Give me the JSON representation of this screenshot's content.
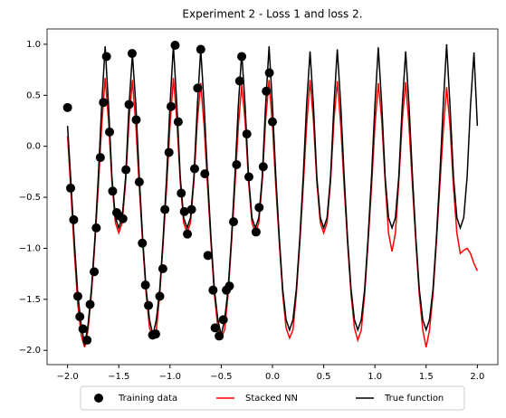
{
  "chart_data": {
    "type": "line",
    "title": "Experiment 2 - Loss 1 and loss 2.",
    "xlim": [
      -2.2,
      2.2
    ],
    "ylim": [
      -2.14,
      1.15
    ],
    "xticks": [
      {
        "value": -2,
        "label": "−2.0"
      },
      {
        "value": -1.5,
        "label": "−1.5"
      },
      {
        "value": -1,
        "label": "−1.0"
      },
      {
        "value": -0.5,
        "label": "−0.5"
      },
      {
        "value": 0,
        "label": "0.0"
      },
      {
        "value": 0.5,
        "label": "0.5"
      },
      {
        "value": 1,
        "label": "1.0"
      },
      {
        "value": 1.5,
        "label": "1.5"
      },
      {
        "value": 2,
        "label": "2.0"
      }
    ],
    "yticks": [
      {
        "value": 1,
        "label": "1.0"
      },
      {
        "value": 0.5,
        "label": "0.5"
      },
      {
        "value": 0,
        "label": "0.0"
      },
      {
        "value": -0.5,
        "label": "−0.5"
      },
      {
        "value": -1,
        "label": "−1.0"
      },
      {
        "value": -1.5,
        "label": "−1.5"
      },
      {
        "value": -2,
        "label": "−2.0"
      }
    ],
    "legend": "lower center",
    "x": [
      -2,
      -1.967,
      -1.933,
      -1.9,
      -1.867,
      -1.833,
      -1.8,
      -1.767,
      -1.733,
      -1.7,
      -1.667,
      -1.633,
      -1.6,
      -1.567,
      -1.533,
      -1.5,
      -1.467,
      -1.433,
      -1.4,
      -1.367,
      -1.333,
      -1.3,
      -1.267,
      -1.233,
      -1.2,
      -1.167,
      -1.133,
      -1.1,
      -1.067,
      -1.033,
      -1,
      -0.967,
      -0.933,
      -0.9,
      -0.867,
      -0.833,
      -0.8,
      -0.767,
      -0.733,
      -0.7,
      -0.667,
      -0.633,
      -0.6,
      -0.567,
      -0.533,
      -0.5,
      -0.467,
      -0.433,
      -0.4,
      -0.367,
      -0.333,
      -0.3,
      -0.267,
      -0.233,
      -0.2,
      -0.167,
      -0.133,
      -0.1,
      -0.067,
      -0.033,
      0,
      0.033,
      0.067,
      0.1,
      0.133,
      0.167,
      0.2,
      0.233,
      0.267,
      0.3,
      0.333,
      0.367,
      0.4,
      0.433,
      0.467,
      0.5,
      0.533,
      0.567,
      0.6,
      0.633,
      0.667,
      0.7,
      0.733,
      0.767,
      0.8,
      0.833,
      0.867,
      0.9,
      0.933,
      0.967,
      1,
      1.033,
      1.067,
      1.1,
      1.133,
      1.167,
      1.2,
      1.233,
      1.267,
      1.3,
      1.333,
      1.367,
      1.4,
      1.433,
      1.467,
      1.5,
      1.533,
      1.567,
      1.6,
      1.633,
      1.667,
      1.7,
      1.733,
      1.767,
      1.8,
      1.833,
      1.867,
      1.9,
      1.933,
      1.967,
      2
    ],
    "series": [
      {
        "name": "Training data",
        "type": "scatter",
        "color": "#000000",
        "x": [
          -2.0,
          -1.97,
          -1.94,
          -1.9,
          -1.88,
          -1.85,
          -1.81,
          -1.78,
          -1.74,
          -1.72,
          -1.68,
          -1.65,
          -1.62,
          -1.59,
          -1.56,
          -1.52,
          -1.5,
          -1.46,
          -1.43,
          -1.4,
          -1.37,
          -1.33,
          -1.3,
          -1.27,
          -1.24,
          -1.21,
          -1.17,
          -1.14,
          -1.1,
          -1.07,
          -1.05,
          -1.01,
          -0.99,
          -0.95,
          -0.92,
          -0.89,
          -0.86,
          -0.83,
          -0.79,
          -0.76,
          -0.73,
          -0.7,
          -0.66,
          -0.63,
          -0.58,
          -0.56,
          -0.52,
          -0.48,
          -0.45,
          -0.42,
          -0.38,
          -0.35,
          -0.32,
          -0.3,
          -0.25,
          -0.23,
          -0.16,
          -0.13,
          -0.09,
          -0.06,
          -0.03,
          0.0
        ],
        "values": [
          0.38,
          -0.41,
          -0.72,
          -1.47,
          -1.67,
          -1.79,
          -1.9,
          -1.55,
          -1.23,
          -0.8,
          -0.11,
          0.43,
          0.88,
          0.14,
          -0.44,
          -0.65,
          -0.68,
          -0.71,
          -0.23,
          0.41,
          0.91,
          0.26,
          -0.35,
          -0.95,
          -1.36,
          -1.56,
          -1.85,
          -1.84,
          -1.47,
          -1.2,
          -0.62,
          -0.06,
          0.39,
          0.99,
          0.24,
          -0.46,
          -0.64,
          -0.86,
          -0.62,
          -0.22,
          0.57,
          0.95,
          -0.27,
          -1.07,
          -1.41,
          -1.78,
          -1.86,
          -1.7,
          -1.41,
          -1.37,
          -0.74,
          -0.18,
          0.64,
          0.88,
          0.12,
          -0.3,
          -0.84,
          -0.6,
          -0.2,
          0.54,
          0.72,
          0.24
        ]
      },
      {
        "name": "Stacked NN",
        "type": "line",
        "color": "#ff0000",
        "values": [
          0.1,
          -0.45,
          -1.05,
          -1.55,
          -1.85,
          -1.97,
          -1.8,
          -1.45,
          -0.95,
          -0.4,
          0.2,
          0.67,
          0.25,
          -0.35,
          -0.75,
          -0.85,
          -0.75,
          -0.35,
          0.25,
          0.65,
          0.2,
          -0.4,
          -0.95,
          -1.45,
          -1.78,
          -1.88,
          -1.8,
          -1.45,
          -0.95,
          -0.4,
          0.2,
          0.67,
          0.25,
          -0.35,
          -0.75,
          -0.85,
          -0.75,
          -0.35,
          0.25,
          0.62,
          0.2,
          -0.4,
          -0.95,
          -1.45,
          -1.78,
          -1.88,
          -1.8,
          -1.45,
          -0.95,
          -0.4,
          0.2,
          0.6,
          0.25,
          -0.35,
          -0.75,
          -0.85,
          -0.75,
          -0.35,
          0.25,
          0.65,
          0.2,
          -0.4,
          -0.95,
          -1.45,
          -1.78,
          -1.88,
          -1.8,
          -1.45,
          -0.95,
          -0.4,
          0.2,
          0.65,
          0.25,
          -0.35,
          -0.75,
          -0.85,
          -0.75,
          -0.35,
          0.25,
          0.64,
          0.2,
          -0.4,
          -0.95,
          -1.45,
          -1.78,
          -1.9,
          -1.8,
          -1.45,
          -0.95,
          -0.4,
          0.2,
          0.62,
          0.25,
          -0.35,
          -0.85,
          -1.03,
          -0.85,
          -0.35,
          0.25,
          0.63,
          0.2,
          -0.4,
          -0.95,
          -1.45,
          -1.8,
          -1.97,
          -1.8,
          -1.45,
          -0.95,
          -0.4,
          0.15,
          0.58,
          0.2,
          -0.4,
          -0.85,
          -1.05,
          -1.02,
          -1.0,
          -1.05,
          -1.15,
          -1.22
        ]
      },
      {
        "name": "True function",
        "type": "line",
        "color": "#000000",
        "values": [
          0.2,
          -0.35,
          -0.95,
          -1.45,
          -1.75,
          -1.95,
          -1.75,
          -1.4,
          -0.9,
          -0.3,
          0.4,
          0.98,
          0.4,
          -0.3,
          -0.7,
          -0.8,
          -0.7,
          -0.3,
          0.4,
          0.9,
          0.4,
          -0.3,
          -0.9,
          -1.4,
          -1.7,
          -1.85,
          -1.7,
          -1.4,
          -0.9,
          -0.3,
          0.4,
          0.99,
          0.4,
          -0.3,
          -0.7,
          -0.8,
          -0.7,
          -0.3,
          0.4,
          0.95,
          0.4,
          -0.3,
          -0.9,
          -1.4,
          -1.7,
          -1.85,
          -1.7,
          -1.4,
          -0.9,
          -0.3,
          0.4,
          0.92,
          0.4,
          -0.3,
          -0.7,
          -0.8,
          -0.7,
          -0.3,
          0.4,
          0.98,
          0.4,
          -0.3,
          -0.9,
          -1.4,
          -1.7,
          -1.8,
          -1.7,
          -1.4,
          -0.9,
          -0.3,
          0.4,
          0.93,
          0.4,
          -0.3,
          -0.7,
          -0.8,
          -0.7,
          -0.3,
          0.4,
          0.95,
          0.4,
          -0.3,
          -0.9,
          -1.4,
          -1.7,
          -1.8,
          -1.7,
          -1.4,
          -0.9,
          -0.3,
          0.4,
          0.97,
          0.4,
          -0.3,
          -0.7,
          -0.8,
          -0.7,
          -0.3,
          0.4,
          0.93,
          0.4,
          -0.3,
          -0.9,
          -1.4,
          -1.7,
          -1.8,
          -1.7,
          -1.4,
          -0.9,
          -0.3,
          0.4,
          1.0,
          0.4,
          -0.3,
          -0.7,
          -0.8,
          -0.7,
          -0.3,
          0.4,
          0.92,
          0.2
        ]
      }
    ]
  }
}
